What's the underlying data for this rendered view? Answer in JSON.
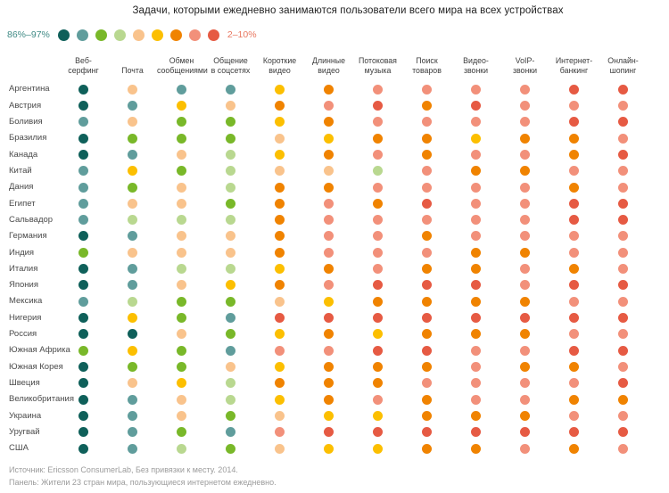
{
  "title": "Задачи, которыми ежедневно занимаются пользователи всего мира на всех устройствах",
  "legend": {
    "high_label": "86%–97%",
    "low_label": "2–10%"
  },
  "footer": {
    "line1": "Источник: Ericsson ConsumerLab, Без привязки к месту. 2014.",
    "line2": "Панель: Жители 23 стран мира, пользующиеся интернетом ежедневно."
  },
  "chart_data": {
    "type": "heatmap",
    "title": "Задачи, которыми ежедневно занимаются пользователи всего мира на всех устройствах",
    "legend": {
      "high_label": "86%–97%",
      "low_label": "2–10%",
      "scale_note": "9-step color scale; level 1 = 86–97% (highest share of daily users), level 9 = 2–10% (lowest)"
    },
    "palette": {
      "colors": [
        "#0f605a",
        "#609d9c",
        "#79b829",
        "#b9d890",
        "#f9c38c",
        "#fcbf00",
        "#f08300",
        "#f2907a",
        "#e65a43"
      ]
    },
    "columns": [
      "Веб-\nсерфинг",
      "Почта",
      "Обмен\nсообщениями",
      "Общение\nв соцсетях",
      "Короткие\nвидео",
      "Длинные\nвидео",
      "Потоковая\nмузыка",
      "Поиск\nтоваров",
      "Видео-\nзвонки",
      "VoIP-\nзвонки",
      "Интернет-\nбанкинг",
      "Онлайн-\nшопинг"
    ],
    "rows": [
      {
        "country": "Аргентина",
        "levels": [
          1,
          5,
          2,
          2,
          6,
          7,
          8,
          8,
          8,
          8,
          9,
          9
        ]
      },
      {
        "country": "Австрия",
        "levels": [
          1,
          2,
          6,
          5,
          7,
          8,
          9,
          7,
          9,
          8,
          8,
          8
        ]
      },
      {
        "country": "Боливия",
        "levels": [
          2,
          5,
          3,
          3,
          6,
          7,
          8,
          8,
          8,
          8,
          9,
          9
        ]
      },
      {
        "country": "Бразилия",
        "levels": [
          1,
          3,
          3,
          3,
          5,
          6,
          7,
          7,
          6,
          7,
          7,
          8
        ]
      },
      {
        "country": "Канада",
        "levels": [
          1,
          2,
          5,
          4,
          6,
          7,
          8,
          7,
          8,
          8,
          7,
          9
        ]
      },
      {
        "country": "Китай",
        "levels": [
          2,
          6,
          3,
          4,
          5,
          5,
          4,
          8,
          7,
          7,
          8,
          8
        ]
      },
      {
        "country": "Дания",
        "levels": [
          2,
          3,
          5,
          4,
          7,
          7,
          8,
          8,
          8,
          8,
          7,
          8
        ]
      },
      {
        "country": "Египет",
        "levels": [
          2,
          5,
          5,
          3,
          7,
          8,
          7,
          9,
          8,
          8,
          9,
          9
        ]
      },
      {
        "country": "Сальвадор",
        "levels": [
          2,
          4,
          4,
          4,
          7,
          8,
          8,
          8,
          8,
          8,
          9,
          9
        ]
      },
      {
        "country": "Германия",
        "levels": [
          1,
          2,
          5,
          5,
          7,
          8,
          8,
          7,
          8,
          8,
          8,
          8
        ]
      },
      {
        "country": "Индия",
        "levels": [
          3,
          5,
          5,
          5,
          7,
          8,
          8,
          8,
          7,
          7,
          8,
          8
        ]
      },
      {
        "country": "Италия",
        "levels": [
          1,
          2,
          4,
          4,
          6,
          7,
          8,
          7,
          7,
          8,
          7,
          8
        ]
      },
      {
        "country": "Япония",
        "levels": [
          1,
          2,
          5,
          6,
          7,
          8,
          9,
          9,
          9,
          8,
          9,
          9
        ]
      },
      {
        "country": "Мексика",
        "levels": [
          2,
          4,
          3,
          3,
          5,
          6,
          7,
          7,
          7,
          7,
          8,
          8
        ]
      },
      {
        "country": "Нигерия",
        "levels": [
          1,
          6,
          3,
          2,
          9,
          9,
          9,
          9,
          9,
          9,
          9,
          9
        ]
      },
      {
        "country": "Россия",
        "levels": [
          1,
          1,
          5,
          3,
          6,
          7,
          6,
          7,
          7,
          7,
          8,
          8
        ]
      },
      {
        "country": "Южная Африка",
        "levels": [
          3,
          6,
          3,
          2,
          8,
          8,
          9,
          9,
          8,
          8,
          9,
          9
        ]
      },
      {
        "country": "Южная Корея",
        "levels": [
          1,
          3,
          3,
          5,
          6,
          7,
          7,
          7,
          8,
          7,
          7,
          8
        ]
      },
      {
        "country": "Швеция",
        "levels": [
          1,
          5,
          6,
          4,
          7,
          7,
          7,
          8,
          8,
          8,
          8,
          9
        ]
      },
      {
        "country": "Великобритания",
        "levels": [
          1,
          2,
          5,
          4,
          6,
          7,
          8,
          7,
          8,
          8,
          7,
          7
        ]
      },
      {
        "country": "Украина",
        "levels": [
          1,
          2,
          5,
          3,
          5,
          6,
          6,
          7,
          7,
          7,
          8,
          8
        ]
      },
      {
        "country": "Уругвай",
        "levels": [
          1,
          2,
          3,
          2,
          8,
          9,
          9,
          9,
          9,
          9,
          9,
          9
        ]
      },
      {
        "country": "США",
        "levels": [
          1,
          2,
          4,
          3,
          5,
          6,
          6,
          7,
          7,
          8,
          7,
          8
        ]
      }
    ]
  }
}
